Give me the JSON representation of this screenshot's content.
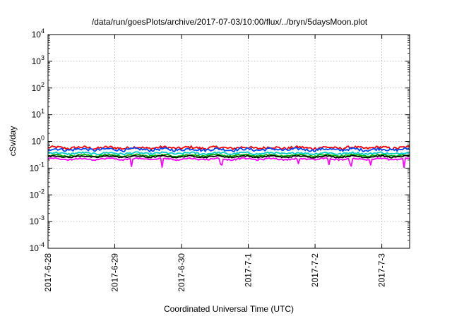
{
  "chart_data": {
    "type": "line",
    "title": "/data/run/goesPlots/archive/2017-07-03/10:00/flux/../bryn/5daysMoon.plot",
    "xlabel": "Coordinated Universal Time (UTC)",
    "ylabel": "cSv/day",
    "yscale": "log",
    "ylim": [
      0.0001,
      10000
    ],
    "xlim": [
      "2017-06-28T00:00",
      "2017-07-03T10:00"
    ],
    "grid": true,
    "legend": "none",
    "x_ticks": [
      "2017-6-28",
      "2017-6-29",
      "2017-6-30",
      "2017-7-1",
      "2017-7-2",
      "2017-7-3"
    ],
    "y_ticks": [
      {
        "value": 0.0001,
        "base": "10",
        "exp": "-4"
      },
      {
        "value": 0.001,
        "base": "10",
        "exp": "-3"
      },
      {
        "value": 0.01,
        "base": "10",
        "exp": "-2"
      },
      {
        "value": 0.1,
        "base": "10",
        "exp": "-1"
      },
      {
        "value": 1,
        "base": "10",
        "exp": "0"
      },
      {
        "value": 10,
        "base": "10",
        "exp": "1"
      },
      {
        "value": 100,
        "base": "10",
        "exp": "2"
      },
      {
        "value": 1000,
        "base": "10",
        "exp": "3"
      },
      {
        "value": 10000,
        "base": "10",
        "exp": "4"
      }
    ],
    "series": [
      {
        "color": "#ff0000",
        "level": 0.58,
        "amp": 0.12
      },
      {
        "color": "#0044ff",
        "level": 0.5,
        "amp": 0.12
      },
      {
        "color": "#00cccc",
        "level": 0.36,
        "amp": 0.08
      },
      {
        "color": "#00aa00",
        "level": 0.3,
        "amp": 0.06
      },
      {
        "color": "#000000",
        "level": 0.27,
        "amp": 0.05
      },
      {
        "color": "#ff00ff",
        "level": 0.22,
        "amp": 0.06,
        "dips": true
      }
    ]
  }
}
